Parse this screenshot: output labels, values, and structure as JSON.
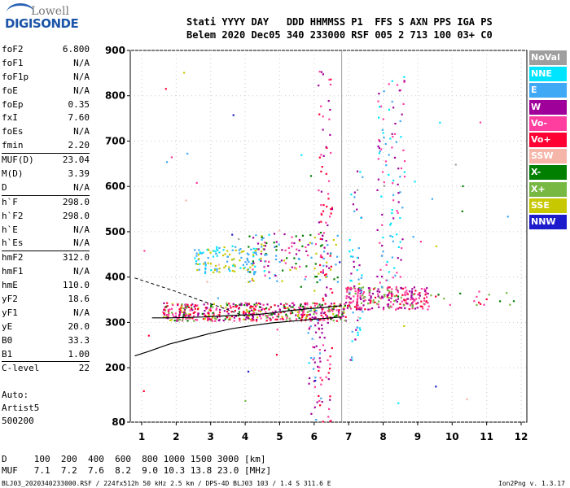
{
  "logo": {
    "line1": "Lowell",
    "line2": "DIGISONDE"
  },
  "header": {
    "line1": "Stati YYYY DAY   DDD HHMMSS P1  FFS S AXN PPS IGA PS",
    "line2": "Belem 2020 Dec05 340 233000 RSF 005 2 713 100 03+ C0"
  },
  "params": [
    {
      "k": "foF2",
      "v": "6.800"
    },
    {
      "k": "foF1",
      "v": "N/A"
    },
    {
      "k": "foF1p",
      "v": "N/A"
    },
    {
      "k": "foE",
      "v": "N/A"
    },
    {
      "k": "foEp",
      "v": "0.35"
    },
    {
      "k": "fxI",
      "v": "7.60"
    },
    {
      "k": "foEs",
      "v": "N/A"
    },
    {
      "k": "fmin",
      "v": "2.20"
    },
    {
      "k": "MUF(D)",
      "v": "23.04",
      "sep": true
    },
    {
      "k": "M(D)",
      "v": "3.39"
    },
    {
      "k": "D",
      "v": "N/A"
    },
    {
      "k": "h`F",
      "v": "298.0",
      "sep": true
    },
    {
      "k": "h`F2",
      "v": "298.0"
    },
    {
      "k": "h`E",
      "v": "N/A"
    },
    {
      "k": "h`Es",
      "v": "N/A"
    },
    {
      "k": "hmF2",
      "v": "312.0",
      "sep": true
    },
    {
      "k": "hmF1",
      "v": "N/A"
    },
    {
      "k": "hmE",
      "v": "110.0"
    },
    {
      "k": "yF2",
      "v": "18.6"
    },
    {
      "k": "yF1",
      "v": "N/A"
    },
    {
      "k": "yE",
      "v": "20.0"
    },
    {
      "k": "B0",
      "v": "33.3"
    },
    {
      "k": "B1",
      "v": "1.00"
    },
    {
      "k": "C-level",
      "v": "22",
      "sep": true
    }
  ],
  "auto": {
    "l1": "Auto:",
    "l2": "Artist5",
    "l3": "500200"
  },
  "footer": {
    "d_line": "D     100  200  400  600  800 1000 1500 3000 [km]",
    "muf_line": "MUF   7.1  7.2  7.6  8.2  9.0 10.3 13.8 23.0 [MHz]",
    "file_line": "BLJ03_2020340233000.RSF / 224fx512h 50 kHz 2.5 km / DPS-4D BLJ03 103 / 1.4 S 311.6 E",
    "version": "Ion2Png v. 1.3.17"
  },
  "legend": [
    {
      "label": "NoVal",
      "color": "#9e9e9e"
    },
    {
      "label": "NNE",
      "color": "#00e5ff"
    },
    {
      "label": "E",
      "color": "#3fa9f5"
    },
    {
      "label": "W",
      "color": "#a0009a"
    },
    {
      "label": "Vo-",
      "color": "#ff3ea0"
    },
    {
      "label": "Vo+",
      "color": "#ff0033"
    },
    {
      "label": "SSW",
      "color": "#f5b5a8"
    },
    {
      "label": "X-",
      "color": "#007f00"
    },
    {
      "label": "X+",
      "color": "#76b842"
    },
    {
      "label": "SSE",
      "color": "#c8c800"
    },
    {
      "label": "NNW",
      "color": "#1c1ccc"
    }
  ],
  "chart_data": {
    "type": "scatter",
    "xlim": [
      1,
      12
    ],
    "ylim": [
      80,
      900
    ],
    "x_ticks": [
      1,
      2,
      3,
      4,
      5,
      6,
      7,
      8,
      9,
      10,
      11,
      12
    ],
    "y_ticks": [
      80,
      200,
      300,
      400,
      500,
      600,
      700,
      800,
      900
    ],
    "grid": true,
    "vertical_lines": [
      6.8
    ],
    "profile_curve": {
      "x": [
        0.8,
        1.2,
        1.8,
        2.4,
        3.0,
        3.6,
        4.2,
        4.8,
        5.4,
        6.0,
        6.5,
        6.8
      ],
      "y": [
        226,
        236,
        252,
        264,
        276,
        286,
        293,
        299,
        303,
        307,
        310,
        312
      ]
    },
    "dashed_curve": {
      "x": [
        0.8,
        1.2,
        1.6,
        2.0,
        2.4,
        2.8,
        3.2,
        3.6,
        4.0
      ],
      "y": [
        398,
        388,
        378,
        368,
        357,
        346,
        336,
        325,
        314
      ]
    },
    "trace_curve": {
      "x": [
        1.3,
        1.8,
        2.3,
        2.8,
        3.3,
        3.8,
        4.3,
        4.8,
        5.3,
        5.8,
        6.3,
        6.8
      ],
      "y": [
        310,
        310,
        311,
        312,
        314,
        316,
        317,
        321,
        326,
        330,
        333,
        337
      ]
    }
  }
}
